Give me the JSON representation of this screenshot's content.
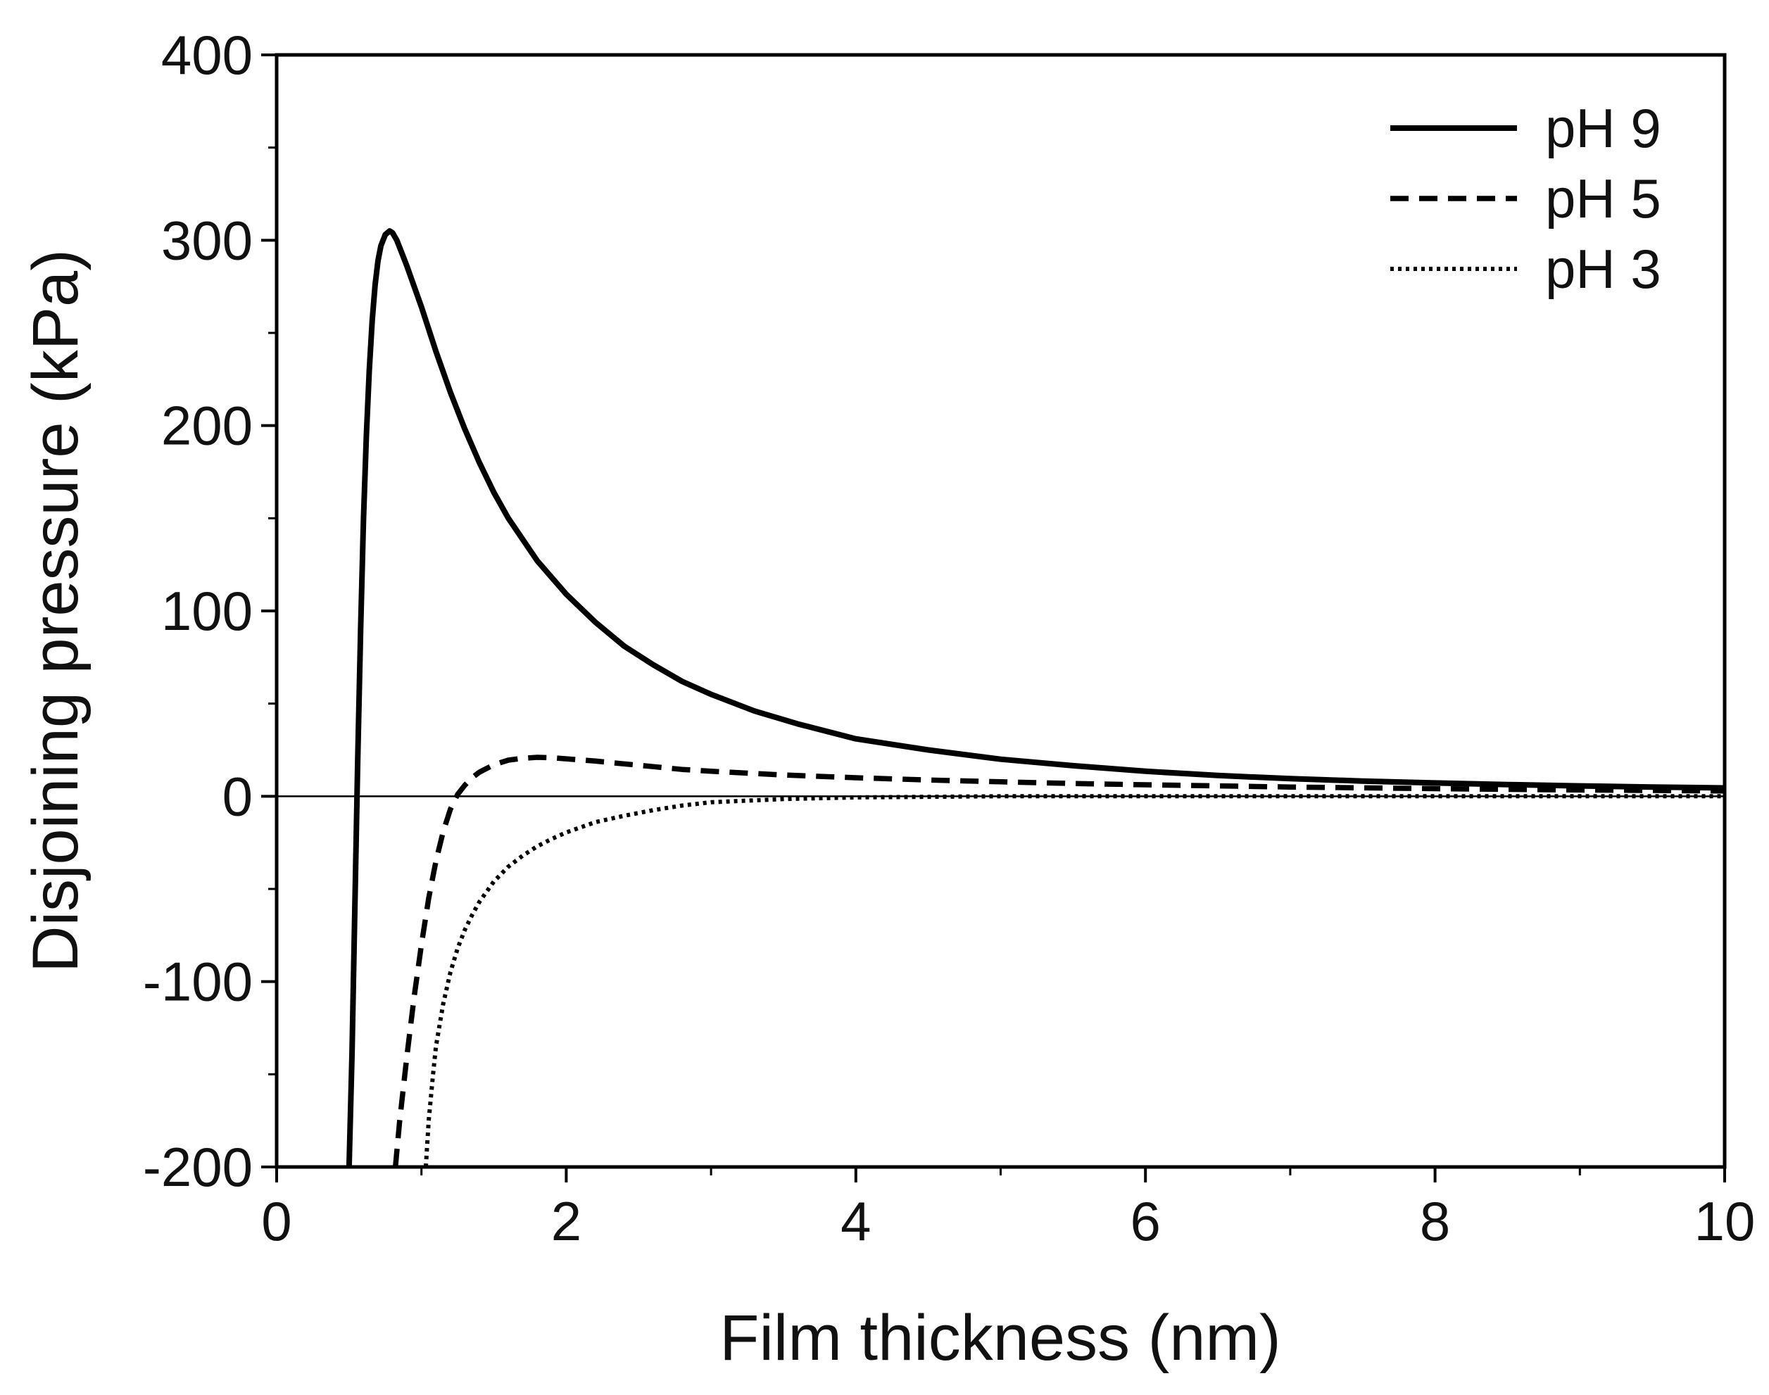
{
  "chart_data": {
    "type": "line",
    "title": "",
    "xlabel": "Film thickness (nm)",
    "ylabel": "Disjoining pressure (kPa)",
    "xlim": [
      0,
      10
    ],
    "ylim": [
      -200,
      400
    ],
    "xticks": [
      0,
      2,
      4,
      6,
      8,
      10
    ],
    "xtick_labels": [
      "0",
      "2",
      "4",
      "6",
      "8",
      "10"
    ],
    "yticks": [
      -200,
      -100,
      0,
      100,
      200,
      300,
      400
    ],
    "ytick_labels": [
      "-200",
      "-100",
      "0",
      "100",
      "200",
      "300",
      "400"
    ],
    "grid": false,
    "zero_line": true,
    "legend_position": "top-right",
    "series": [
      {
        "name": "pH 9",
        "style": "solid",
        "color": "#000000",
        "x": [
          0.5,
          0.52,
          0.54,
          0.56,
          0.58,
          0.6,
          0.62,
          0.64,
          0.66,
          0.68,
          0.7,
          0.72,
          0.75,
          0.78,
          0.8,
          0.83,
          0.86,
          0.9,
          0.95,
          1.0,
          1.1,
          1.2,
          1.3,
          1.4,
          1.5,
          1.6,
          1.8,
          2.0,
          2.2,
          2.4,
          2.6,
          2.8,
          3.0,
          3.3,
          3.6,
          4.0,
          4.5,
          5.0,
          5.5,
          6.0,
          6.5,
          7.0,
          7.5,
          8.0,
          8.5,
          9.0,
          9.5,
          10.0
        ],
        "y": [
          -200,
          -140,
          -60,
          20,
          90,
          150,
          195,
          230,
          257,
          276,
          289,
          297,
          303,
          305,
          304,
          300,
          294,
          286,
          275,
          264,
          240,
          218,
          198,
          180,
          164,
          150,
          127,
          109,
          94,
          81,
          71,
          62,
          55,
          46,
          39,
          31,
          25,
          20,
          16.5,
          13.5,
          11.2,
          9.5,
          8.2,
          7.2,
          6.3,
          5.6,
          5.0,
          4.5
        ]
      },
      {
        "name": "pH 5",
        "style": "dashed",
        "color": "#000000",
        "x": [
          0.82,
          0.85,
          0.9,
          0.95,
          1.0,
          1.05,
          1.1,
          1.15,
          1.2,
          1.25,
          1.3,
          1.35,
          1.4,
          1.5,
          1.6,
          1.7,
          1.8,
          1.9,
          2.0,
          2.2,
          2.4,
          2.6,
          2.8,
          3.0,
          3.5,
          4.0,
          4.5,
          5.0,
          5.5,
          6.0,
          7.0,
          8.0,
          9.0,
          10.0
        ],
        "y": [
          -200,
          -175,
          -140,
          -108,
          -80,
          -55,
          -35,
          -19,
          -7,
          1,
          6,
          10,
          13,
          17,
          19.5,
          20.5,
          21,
          20.8,
          20.2,
          19,
          17.5,
          16,
          14.5,
          13.5,
          11.5,
          10,
          8.8,
          7.8,
          6.9,
          6.2,
          5.0,
          4.1,
          3.4,
          2.9
        ]
      },
      {
        "name": "pH 3",
        "style": "dotted",
        "color": "#000000",
        "x": [
          1.03,
          1.05,
          1.08,
          1.1,
          1.15,
          1.2,
          1.25,
          1.3,
          1.35,
          1.4,
          1.5,
          1.6,
          1.7,
          1.8,
          1.9,
          2.0,
          2.2,
          2.4,
          2.6,
          2.8,
          3.0,
          3.5,
          4.0,
          5.0,
          6.0,
          7.0,
          8.0,
          9.0,
          10.0
        ],
        "y": [
          -200,
          -175,
          -150,
          -135,
          -112,
          -95,
          -82,
          -72,
          -64,
          -57,
          -46,
          -38,
          -32,
          -27,
          -23,
          -19.5,
          -14,
          -10.5,
          -7.5,
          -5,
          -3.2,
          -1.5,
          -0.6,
          0,
          0,
          0,
          0,
          0,
          0
        ]
      }
    ]
  }
}
